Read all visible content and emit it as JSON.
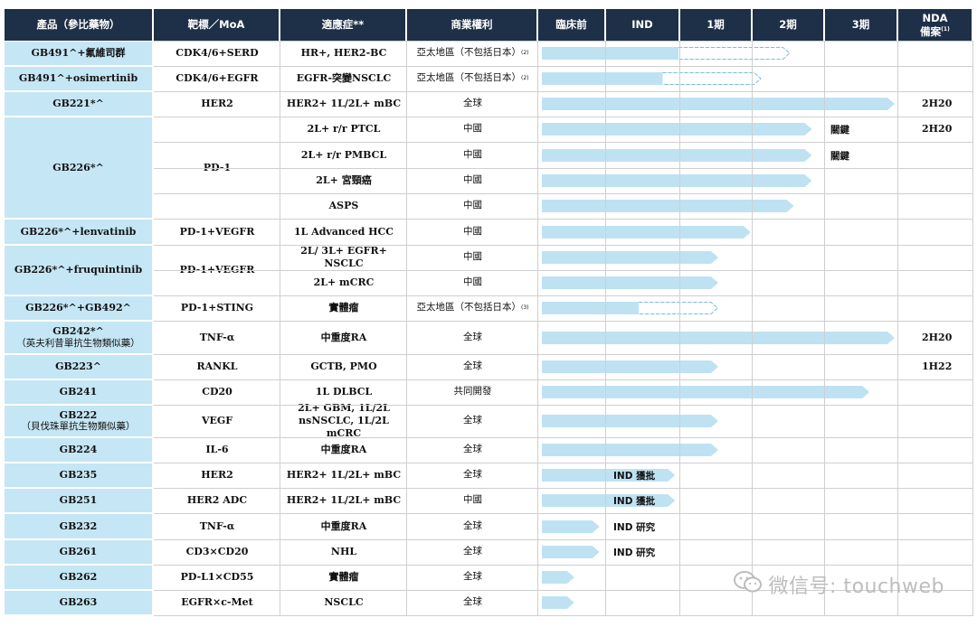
{
  "headers": [
    "產品（參比藥物）",
    "靶標／MoA",
    "適應症**",
    "商業權利",
    "臨床前",
    "IND",
    "1期",
    "2期",
    "3期",
    "NDA\n備案"
  ],
  "nda_header": {
    "line1": "NDA",
    "line2": "備案",
    "note": "(1)"
  },
  "products": [
    {
      "name": "GB491^+氟維司群"
    },
    {
      "name": "GB491^+osimertinib"
    },
    {
      "name": "GB221*^"
    },
    {
      "name": "GB226*^"
    },
    {
      "name": "GB226*^+lenvatinib"
    },
    {
      "name": "GB226*^+fruquintinib"
    },
    {
      "name": "GB226*^+GB492^"
    },
    {
      "name": "GB242*^",
      "sub": "（英夫利昔單抗生物類似藥）"
    },
    {
      "name": "GB223^"
    },
    {
      "name": "GB241"
    },
    {
      "name": "GB222",
      "sub": "（貝伐珠單抗生物類似藥）"
    },
    {
      "name": "GB224"
    },
    {
      "name": "GB235"
    },
    {
      "name": "GB251"
    },
    {
      "name": "GB232"
    },
    {
      "name": "GB261"
    },
    {
      "name": "GB262"
    },
    {
      "name": "GB263"
    }
  ],
  "targets": [
    "CDK4/6+SERD",
    "CDK4/6+EGFR",
    "HER2",
    "PD-1",
    "PD-1+VEGFR",
    "PD-1+VEGFR",
    "PD-1+STING",
    "TNF-α",
    "RANKL",
    "CD20",
    "VEGF",
    "IL-6",
    "HER2",
    "HER2 ADC",
    "TNF-α",
    "CD3×CD20",
    "PD-L1×CD55",
    "EGFR×c-Met"
  ],
  "indications": [
    "HR+, HER2-BC",
    "EGFR-突變NSCLC",
    "HER2+ 1L/2L+ mBC",
    "2L+ r/r PTCL",
    "2L+ r/r PMBCL",
    "2L+ 宮頸癌",
    "ASPS",
    "1L Advanced HCC",
    "2L/ 3L+ EGFR+ NSCLC",
    "2L+ mCRC",
    "實體瘤",
    "中重度RA",
    "GCTB, PMO",
    "1L DLBCL",
    "2L+ GBM, 1L/2L nsNSCLC, 1L/2L mCRC",
    "中重度RA",
    "HER2+ 1L/2L+ mBC",
    "HER2+ 1L/2L+ mBC",
    "中重度RA",
    "NHL",
    "實體瘤",
    "NSCLC"
  ],
  "rights": [
    {
      "text": "亞太地區（不包括日本）",
      "note": "(2)"
    },
    {
      "text": "亞太地區（不包括日本）",
      "note": "(2)"
    },
    {
      "text": "全球"
    },
    {
      "text": "中國"
    },
    {
      "text": "中國"
    },
    {
      "text": "中國"
    },
    {
      "text": "中國"
    },
    {
      "text": "中國"
    },
    {
      "text": "中國"
    },
    {
      "text": "中國"
    },
    {
      "text": "亞太地區（不包括日本）",
      "note": "(3)"
    },
    {
      "text": "全球"
    },
    {
      "text": "全球"
    },
    {
      "text": "共同開發"
    },
    {
      "text": "全球"
    },
    {
      "text": "全球"
    },
    {
      "text": "全球"
    },
    {
      "text": "中國"
    },
    {
      "text": "全球"
    },
    {
      "text": "全球"
    },
    {
      "text": "全球"
    },
    {
      "text": "全球"
    }
  ],
  "progress": [
    {
      "stage_end": 3.5,
      "dashed": true
    },
    {
      "stage_end": 3.1,
      "dashed": true
    },
    {
      "stage_end": 4.95,
      "dashed": false
    },
    {
      "stage_end": 3.8,
      "dashed": false,
      "label": "關鍵"
    },
    {
      "stage_end": 3.8,
      "dashed": false,
      "label": "關鍵"
    },
    {
      "stage_end": 3.8,
      "dashed": false
    },
    {
      "stage_end": 3.55,
      "dashed": false
    },
    {
      "stage_end": 2.95,
      "dashed": false
    },
    {
      "stage_end": 2.5,
      "dashed": false
    },
    {
      "stage_end": 2.5,
      "dashed": false
    },
    {
      "stage_end": 2.5,
      "dashed": true
    },
    {
      "stage_end": 4.95,
      "dashed": false
    },
    {
      "stage_end": 2.5,
      "dashed": false
    },
    {
      "stage_end": 4.6,
      "dashed": false
    },
    {
      "stage_end": 2.5,
      "dashed": false
    },
    {
      "stage_end": 2.5,
      "dashed": false
    },
    {
      "stage_end": 1.9,
      "dashed": false,
      "label": "IND 獲批"
    },
    {
      "stage_end": 1.9,
      "dashed": false,
      "label": "IND 獲批"
    },
    {
      "stage_end": 0.85,
      "dashed": false,
      "label": "IND 研究"
    },
    {
      "stage_end": 0.85,
      "dashed": false,
      "label": "IND 研究"
    },
    {
      "stage_end": 0.5,
      "dashed": false
    },
    {
      "stage_end": 0.5,
      "dashed": false
    }
  ],
  "nda": [
    "",
    "",
    "2H20",
    "2H20",
    "",
    "",
    "",
    "",
    "",
    "",
    "",
    "2H20",
    "1H22",
    "",
    "",
    "",
    "",
    "",
    "",
    "",
    "",
    ""
  ],
  "colors": {
    "header_bg": "#1e3047",
    "product_bg": "#c5e6f4",
    "bar": "#bfe2f2"
  },
  "watermark": {
    "text": "微信号: touchweb",
    "icon": "wechat-icon"
  }
}
